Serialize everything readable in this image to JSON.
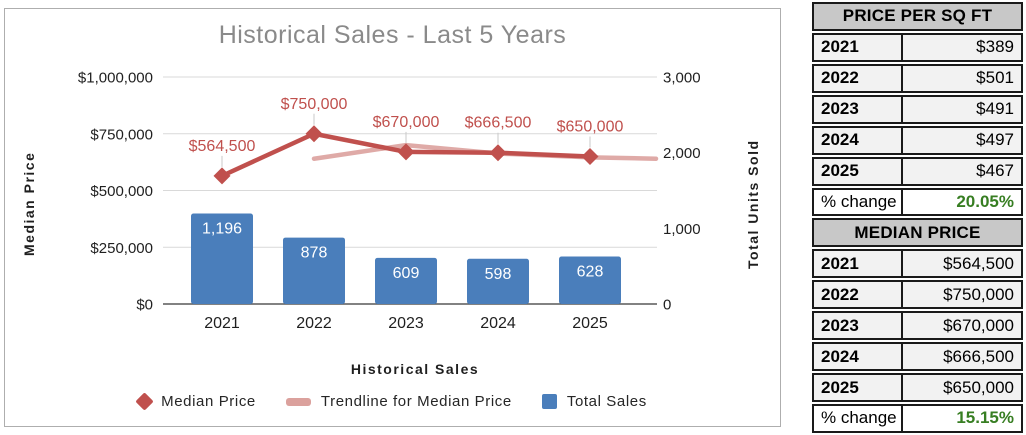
{
  "chart_data": {
    "type": "combo",
    "title": "Historical Sales - Last 5 Years",
    "categories": [
      "2021",
      "2022",
      "2023",
      "2024",
      "2025"
    ],
    "series": [
      {
        "name": "Median Price",
        "type": "line",
        "axis": "left",
        "color": "#c0504d",
        "values": [
          564500,
          750000,
          670000,
          666500,
          650000
        ],
        "labels": [
          "$564,500",
          "$750,000",
          "$670,000",
          "$666,500",
          "$650,000"
        ]
      },
      {
        "name": "Trendline for Median Price",
        "type": "trendline",
        "axis": "left",
        "color": "#dba19d",
        "values": [
          null,
          640000,
          700000,
          663000,
          646000
        ],
        "edge_value": 640000
      },
      {
        "name": "Total Sales",
        "type": "bar",
        "axis": "right",
        "color": "#4a7ebb",
        "values": [
          1196,
          878,
          609,
          598,
          628
        ],
        "labels": [
          "1,196",
          "878",
          "609",
          "598",
          "628"
        ]
      }
    ],
    "axes": {
      "left": {
        "title": "Median Price",
        "min": 0,
        "max": 1000000,
        "tick_labels": [
          "$0",
          "$250,000",
          "$500,000",
          "$750,000",
          "$1,000,000"
        ]
      },
      "right": {
        "title": "Total Units Sold",
        "min": 0,
        "max": 3000,
        "tick_labels": [
          "0",
          "1,000",
          "2,000",
          "3,000"
        ]
      },
      "x": {
        "title": "Historical Sales"
      }
    },
    "grid": true,
    "legend_position": "bottom"
  },
  "colors": {
    "median_line": "#c0504d",
    "trendline": "#dba19d",
    "bars": "#4a7ebb",
    "positive_change_green": "#377e22",
    "title_gray": "#8a8a8a",
    "table_header_bg": "#c8c8c8",
    "table_row_bg": "#f2f2f2"
  },
  "summary_tables": {
    "price_per_sqft": {
      "title": "PRICE PER SQ FT",
      "rows": [
        {
          "label": "2021",
          "value": "$389"
        },
        {
          "label": "2022",
          "value": "$501"
        },
        {
          "label": "2023",
          "value": "$491"
        },
        {
          "label": "2024",
          "value": "$497"
        },
        {
          "label": "2025",
          "value": "$467"
        },
        {
          "label": "% change",
          "value": "20.05%"
        }
      ]
    },
    "median_price": {
      "title": "MEDIAN PRICE",
      "rows": [
        {
          "label": "2021",
          "value": "$564,500"
        },
        {
          "label": "2022",
          "value": "$750,000"
        },
        {
          "label": "2023",
          "value": "$670,000"
        },
        {
          "label": "2024",
          "value": "$666,500"
        },
        {
          "label": "2025",
          "value": "$650,000"
        },
        {
          "label": "% change",
          "value": "15.15%"
        }
      ]
    }
  }
}
